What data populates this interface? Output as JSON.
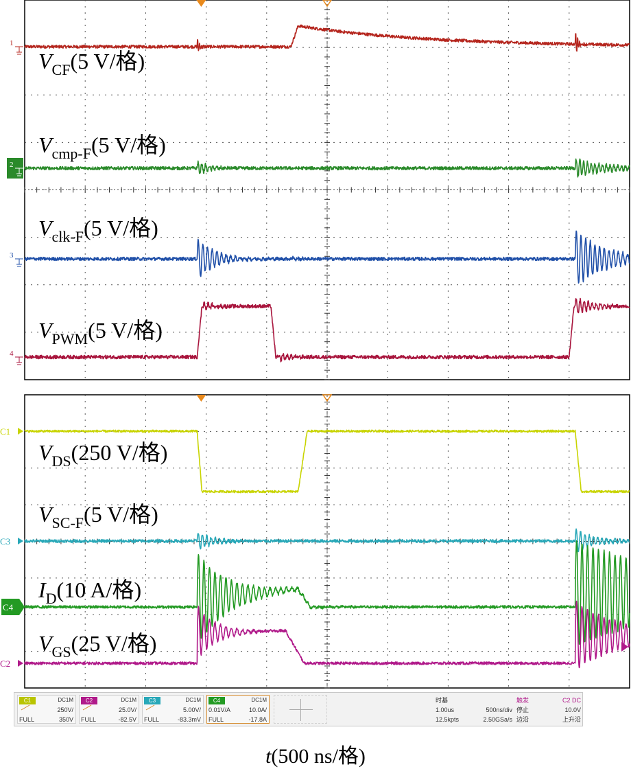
{
  "chart_data": [
    {
      "type": "line",
      "title": "",
      "series": [
        {
          "name": "V_CF(5 V/格)",
          "label_main": "V",
          "label_sub": "CF",
          "label_rest": "(5 V/格)",
          "marker": "1",
          "color": "#b5261e"
        },
        {
          "name": "V_cmp-F(5 V/格)",
          "label_main": "V",
          "label_sub": "cmp-F",
          "label_rest": "(5 V/格)",
          "marker": "2",
          "color": "#2a8a2a"
        },
        {
          "name": "V_clk-F(5 V/格)",
          "label_main": "V",
          "label_sub": "clk-F",
          "label_rest": "(5 V/格)",
          "marker": "3",
          "color": "#1f4fa8"
        },
        {
          "name": "V_PWM(5 V/格)",
          "label_main": "V",
          "label_sub": "PWM",
          "label_rest": "(5 V/格)",
          "marker": "4",
          "color": "#a8143c"
        }
      ],
      "x_divisions": 10,
      "y_divisions": 8,
      "grid": true
    },
    {
      "type": "line",
      "title": "",
      "series": [
        {
          "name": "V_DS(250 V/格)",
          "label_main": "V",
          "label_sub": "DS",
          "label_rest": "(250 V/格)",
          "marker": "C1",
          "color": "#c8d400"
        },
        {
          "name": "V_SC-F(5 V/格)",
          "label_main": "V",
          "label_sub": "SC-F",
          "label_rest": "(5 V/格)",
          "marker": "C3",
          "color": "#28a8b8"
        },
        {
          "name": "I_D(10 A/格)",
          "label_main": "I",
          "label_sub": "D",
          "label_rest": "(10 A/格)",
          "marker": "C4",
          "color": "#239a23"
        },
        {
          "name": "V_GS(25 V/格)",
          "label_main": "V",
          "label_sub": "GS",
          "label_rest": "(25 V/格)",
          "marker": "C2",
          "color": "#b01a8a"
        }
      ],
      "x_divisions": 10,
      "y_divisions": 8,
      "grid": true
    }
  ],
  "status_bar": {
    "channels": [
      {
        "id": "C1",
        "coupling": "DC1M",
        "scale": "250V/",
        "bw": "FULL",
        "offset": "350V",
        "color": "#b9c400"
      },
      {
        "id": "C2",
        "coupling": "DC1M",
        "scale": "25.0V/",
        "bw": "FULL",
        "offset": "-82.5V",
        "color": "#b01a8a"
      },
      {
        "id": "C3",
        "coupling": "DC1M",
        "scale": "5.00V/",
        "bw": "FULL",
        "offset": "-83.3mV",
        "color": "#28a8b8"
      },
      {
        "id": "C4",
        "coupling": "DC1M",
        "scale": "10.0A/",
        "probe": "0.01V/A",
        "bw": "FULL",
        "offset": "-17.8A",
        "color": "#239a23"
      }
    ],
    "timebase": {
      "label": "时基",
      "delay": "1.00us",
      "scale": "500ns/div",
      "points": "12.5kpts",
      "rate": "2.50GSa/s"
    },
    "trigger": {
      "label": "触发",
      "source": "C2 DC",
      "state": "停止",
      "level": "10.0V",
      "edge_label": "边沿",
      "edge": "上升沿"
    }
  },
  "xlabel": {
    "var": "t",
    "rest": "(500 ns/格)"
  }
}
